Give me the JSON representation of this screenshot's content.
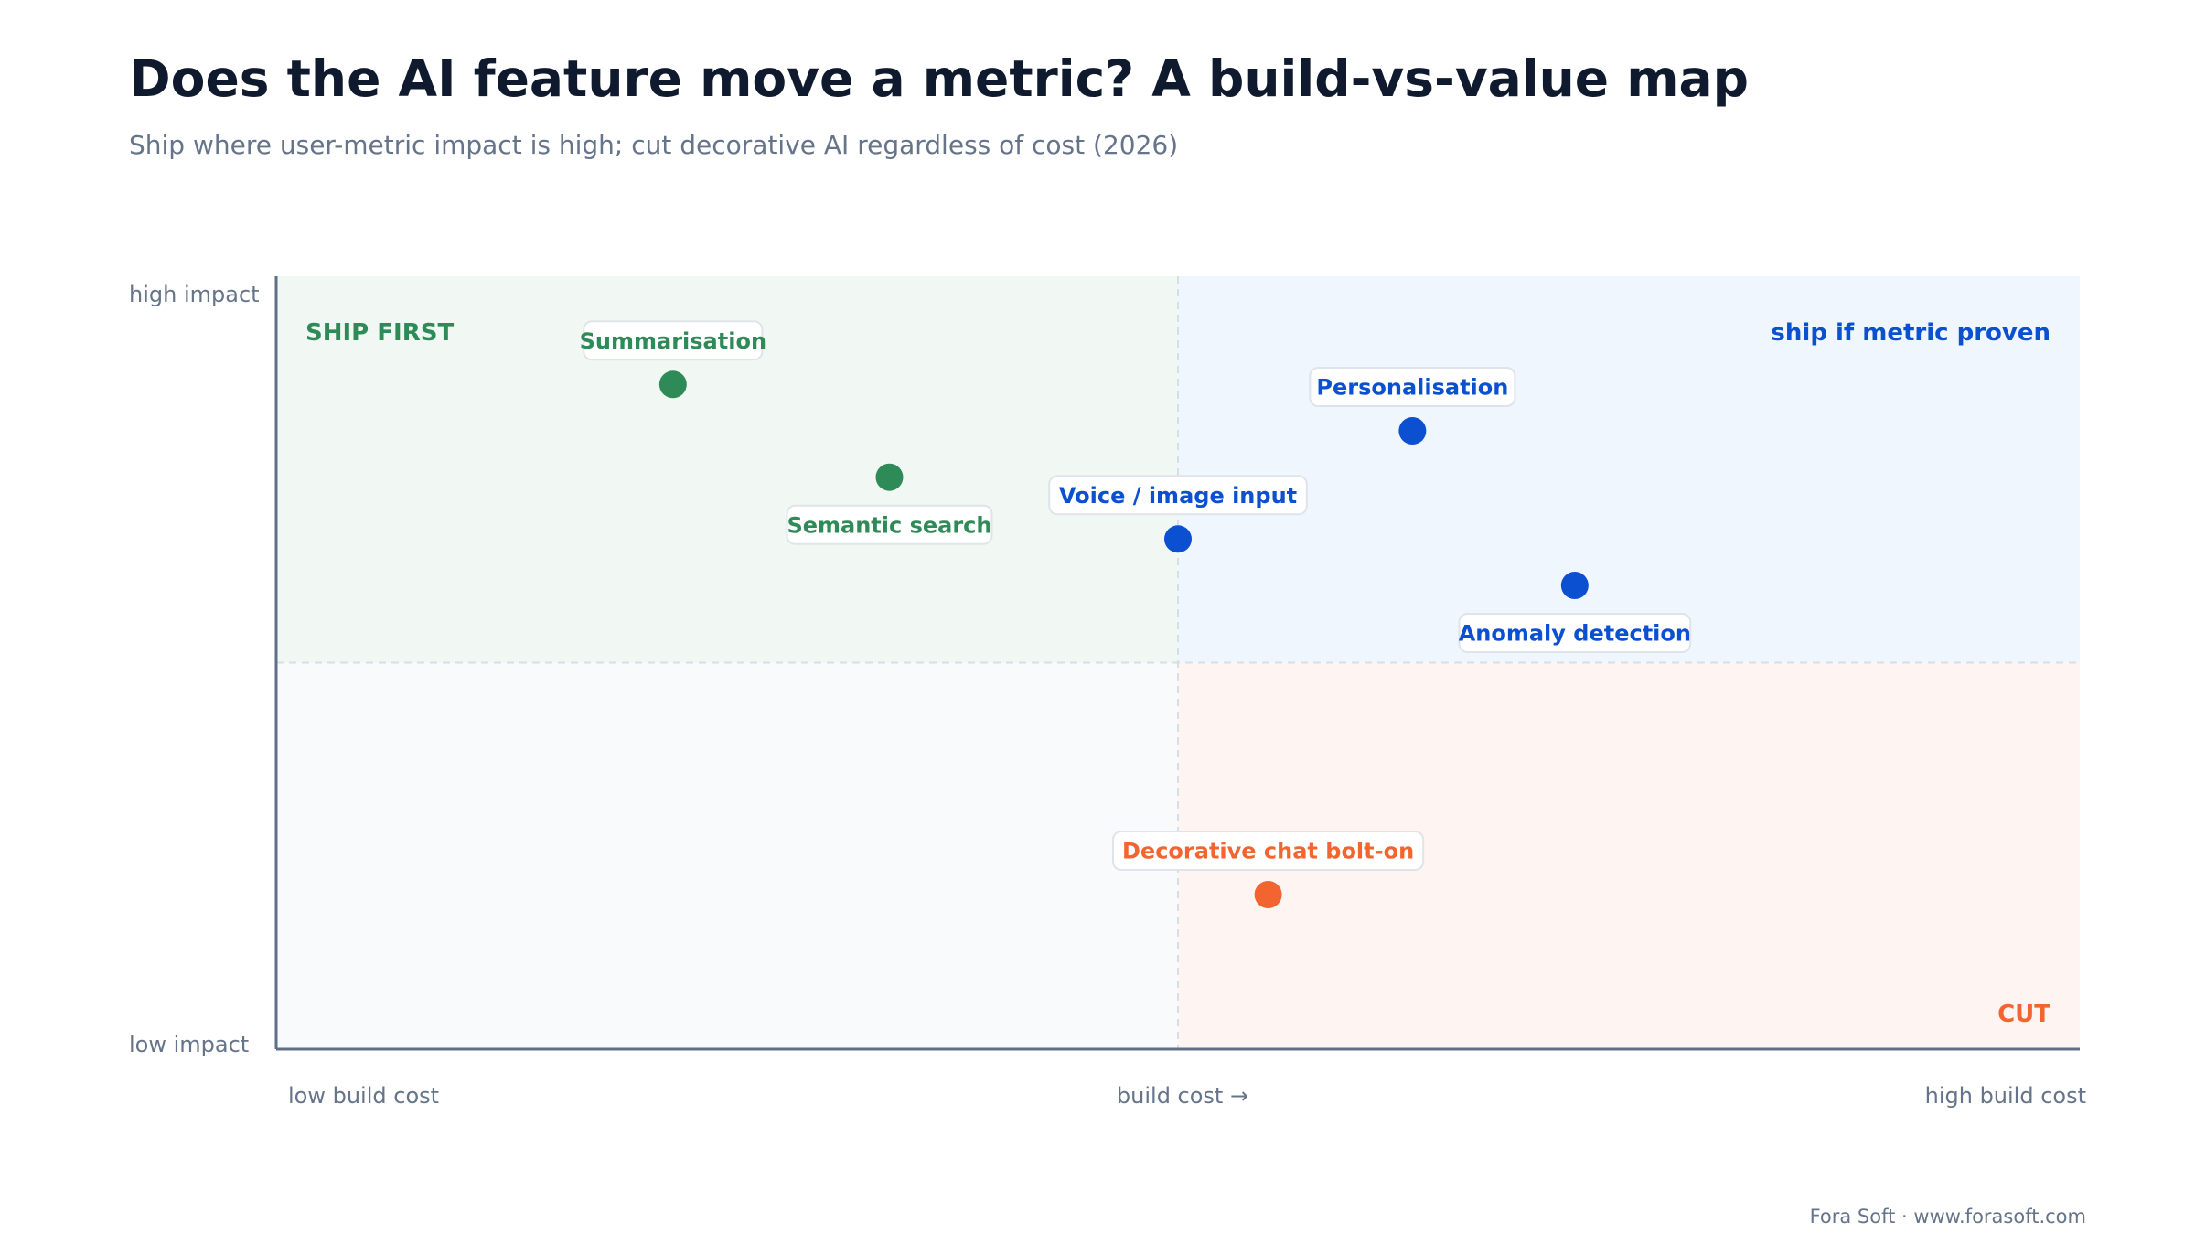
{
  "title": "Does the AI feature move a metric? A build-vs-value map",
  "subtitle": "Ship where user-metric impact is high; cut decorative AI regardless of cost (2026)",
  "footer": "Fora Soft · www.forasoft.com",
  "colors": {
    "ship_first": "#2e8b57",
    "ship_if_proven": "#0b50d1",
    "cut": "#f26430",
    "axis": "#5f6f86",
    "text_muted": "#66748a",
    "quad_ship_first_bg": "#f1f8f3",
    "quad_ship_if_proven_bg": "#eff6fe",
    "quad_low_low_bg": "#f8fafc",
    "quad_cut_bg": "#fef5f2"
  },
  "chart_data": {
    "type": "scatter",
    "title": "Does the AI feature move a metric? A build-vs-value map",
    "subtitle": "Ship where user-metric impact is high; cut decorative AI regardless of cost (2026)",
    "xlabel": "build cost →",
    "x_min_label": "low build cost",
    "x_max_label": "high build cost",
    "y_min_label": "low impact",
    "y_max_label": "high impact",
    "xlim": [
      0,
      100
    ],
    "ylim": [
      0,
      100
    ],
    "quadrant_split": {
      "x": 50,
      "y": 50
    },
    "quadrants": [
      {
        "id": "ship_first",
        "label": "SHIP FIRST",
        "color_key": "ship_first"
      },
      {
        "id": "ship_if_proven",
        "label": "ship if metric proven",
        "color_key": "ship_if_proven"
      },
      {
        "id": "cut",
        "label": "CUT",
        "color_key": "cut"
      }
    ],
    "points": [
      {
        "label": "Summarisation",
        "x": 22,
        "y": 86,
        "group": "ship_first",
        "label_pos": "above"
      },
      {
        "label": "Semantic search",
        "x": 34,
        "y": 74,
        "group": "ship_first",
        "label_pos": "below"
      },
      {
        "label": "Voice / image input",
        "x": 50,
        "y": 66,
        "group": "ship_if_proven",
        "label_pos": "above"
      },
      {
        "label": "Personalisation",
        "x": 63,
        "y": 80,
        "group": "ship_if_proven",
        "label_pos": "above"
      },
      {
        "label": "Anomaly detection",
        "x": 72,
        "y": 60,
        "group": "ship_if_proven",
        "label_pos": "below"
      },
      {
        "label": "Decorative chat bolt-on",
        "x": 55,
        "y": 20,
        "group": "cut",
        "label_pos": "above"
      }
    ]
  }
}
